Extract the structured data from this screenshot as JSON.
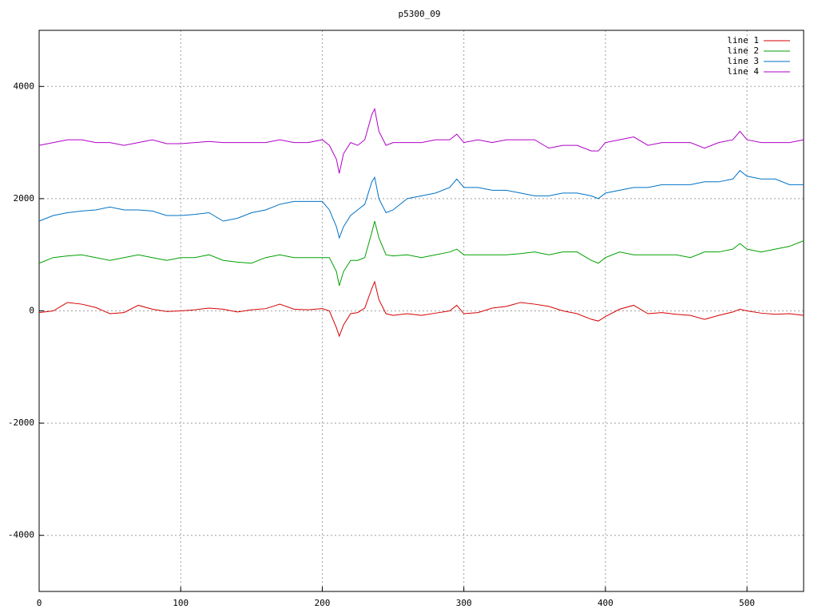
{
  "chart_data": {
    "type": "line",
    "title": "p5300_09",
    "x": [
      0,
      10,
      20,
      30,
      40,
      50,
      60,
      70,
      80,
      90,
      100,
      110,
      120,
      130,
      140,
      150,
      160,
      170,
      180,
      190,
      200,
      205,
      210,
      212,
      215,
      220,
      225,
      230,
      235,
      237,
      240,
      245,
      250,
      260,
      270,
      280,
      290,
      295,
      300,
      310,
      320,
      330,
      340,
      350,
      360,
      370,
      380,
      390,
      395,
      400,
      410,
      420,
      430,
      440,
      450,
      460,
      470,
      480,
      490,
      495,
      500,
      510,
      520,
      530,
      540
    ],
    "series": [
      {
        "name": "line 1",
        "color": "#d40000",
        "values": [
          -30,
          0,
          150,
          120,
          60,
          -50,
          -30,
          100,
          30,
          -10,
          0,
          20,
          50,
          30,
          -20,
          20,
          40,
          120,
          30,
          20,
          40,
          0,
          -300,
          -450,
          -250,
          -50,
          -30,
          50,
          400,
          520,
          200,
          -50,
          -80,
          -50,
          -80,
          -40,
          0,
          100,
          -50,
          -30,
          50,
          80,
          150,
          120,
          80,
          0,
          -50,
          -150,
          -180,
          -100,
          30,
          100,
          -50,
          -30,
          -60,
          -80,
          -150,
          -80,
          -20,
          30,
          0,
          -40,
          -60,
          -50,
          -80
        ]
      },
      {
        "name": "line 2",
        "color": "#00a000",
        "values": [
          850,
          950,
          980,
          1000,
          950,
          900,
          950,
          1000,
          950,
          900,
          950,
          950,
          1000,
          900,
          870,
          850,
          950,
          1000,
          950,
          950,
          950,
          950,
          700,
          450,
          700,
          900,
          900,
          950,
          1400,
          1600,
          1300,
          1000,
          980,
          1000,
          950,
          1000,
          1050,
          1100,
          1000,
          1000,
          1000,
          1000,
          1020,
          1050,
          1000,
          1050,
          1050,
          900,
          850,
          950,
          1050,
          1000,
          1000,
          1000,
          1000,
          950,
          1050,
          1050,
          1100,
          1200,
          1100,
          1050,
          1100,
          1150,
          1250
        ]
      },
      {
        "name": "line 3",
        "color": "#0072c6",
        "values": [
          1600,
          1700,
          1750,
          1780,
          1800,
          1850,
          1800,
          1800,
          1780,
          1700,
          1700,
          1720,
          1750,
          1600,
          1650,
          1750,
          1800,
          1900,
          1950,
          1950,
          1950,
          1800,
          1500,
          1300,
          1500,
          1700,
          1800,
          1900,
          2300,
          2380,
          2000,
          1750,
          1800,
          2000,
          2050,
          2100,
          2200,
          2350,
          2200,
          2200,
          2150,
          2150,
          2100,
          2050,
          2050,
          2100,
          2100,
          2050,
          2000,
          2100,
          2150,
          2200,
          2200,
          2250,
          2250,
          2250,
          2300,
          2300,
          2350,
          2500,
          2400,
          2350,
          2350,
          2250,
          2250
        ]
      },
      {
        "name": "line 4",
        "color": "#b000c8",
        "values": [
          2950,
          3000,
          3050,
          3050,
          3000,
          3000,
          2950,
          3000,
          3050,
          2980,
          2980,
          3000,
          3020,
          3000,
          3000,
          3000,
          3000,
          3050,
          3000,
          3000,
          3050,
          2950,
          2700,
          2450,
          2800,
          3000,
          2950,
          3050,
          3500,
          3600,
          3200,
          2950,
          3000,
          3000,
          3000,
          3050,
          3050,
          3150,
          3000,
          3050,
          3000,
          3050,
          3050,
          3050,
          2900,
          2950,
          2950,
          2850,
          2850,
          3000,
          3050,
          3100,
          2950,
          3000,
          3000,
          3000,
          2900,
          3000,
          3050,
          3200,
          3050,
          3000,
          3000,
          3000,
          3050
        ]
      }
    ],
    "xlim": [
      0,
      540
    ],
    "xticks": [
      0,
      100,
      200,
      300,
      400,
      500
    ],
    "ylim": [
      -5000,
      5000
    ],
    "yticks": [
      -4000,
      -2000,
      0,
      2000,
      4000
    ],
    "grid": true,
    "legend": "top-right"
  }
}
